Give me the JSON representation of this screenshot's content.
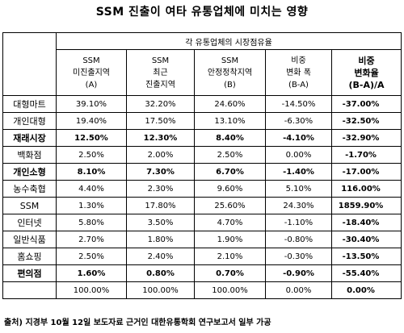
{
  "title": "SSM 진출이 여타 유통업체에 미치는 영향",
  "table": {
    "group_header": "각 유통업체의 시장점유율",
    "columns": [
      {
        "lines": [
          "SSM",
          "미진출지역",
          "(A)"
        ]
      },
      {
        "lines": [
          "SSM",
          "최근",
          "진출지역"
        ]
      },
      {
        "lines": [
          "SSM",
          "안정정착지역",
          "(B)"
        ]
      },
      {
        "lines": [
          "비중",
          "변화 폭",
          "(B-A)"
        ]
      },
      {
        "lines": [
          "비중",
          "변화율",
          "(B-A)/A"
        ]
      }
    ],
    "rows": [
      {
        "name": "대형마트",
        "values": [
          "39.10%",
          "32.20%",
          "24.60%",
          "-14.50%",
          "-37.00%"
        ],
        "emphasis": false
      },
      {
        "name": "개인대형",
        "values": [
          "19.40%",
          "17.50%",
          "13.10%",
          "-6.30%",
          "-32.50%"
        ],
        "emphasis": false
      },
      {
        "name": "재래시장",
        "values": [
          "12.50%",
          "12.30%",
          "8.40%",
          "-4.10%",
          "-32.90%"
        ],
        "emphasis": true
      },
      {
        "name": "백화점",
        "values": [
          "2.50%",
          "2.00%",
          "2.50%",
          "0.00%",
          "-1.70%"
        ],
        "emphasis": false
      },
      {
        "name": "개인소형",
        "values": [
          "8.10%",
          "7.30%",
          "6.70%",
          "-1.40%",
          "-17.00%"
        ],
        "emphasis": true
      },
      {
        "name": "농수축협",
        "values": [
          "4.40%",
          "2.30%",
          "9.60%",
          "5.10%",
          "116.00%"
        ],
        "emphasis": false
      },
      {
        "name": "SSM",
        "values": [
          "1.30%",
          "17.80%",
          "25.60%",
          "24.30%",
          "1859.90%"
        ],
        "emphasis": false
      },
      {
        "name": "인터넷",
        "values": [
          "5.80%",
          "3.50%",
          "4.70%",
          "-1.10%",
          "-18.40%"
        ],
        "emphasis": false
      },
      {
        "name": "일반식품",
        "values": [
          "2.70%",
          "1.80%",
          "1.90%",
          "-0.80%",
          "-30.40%"
        ],
        "emphasis": false
      },
      {
        "name": "홈쇼핑",
        "values": [
          "2.50%",
          "2.40%",
          "2.10%",
          "-0.30%",
          "-13.50%"
        ],
        "emphasis": false
      },
      {
        "name": "편의점",
        "values": [
          "1.60%",
          "0.80%",
          "0.70%",
          "-0.90%",
          "-55.40%"
        ],
        "emphasis": true
      }
    ],
    "total": {
      "name": "",
      "values": [
        "100.00%",
        "100.00%",
        "100.00%",
        "0.00%",
        "0.00%"
      ]
    }
  },
  "source": "출처) 지경부 10월 12일 보도자료 근거인 대한유통학회 연구보고서 일부 가공"
}
